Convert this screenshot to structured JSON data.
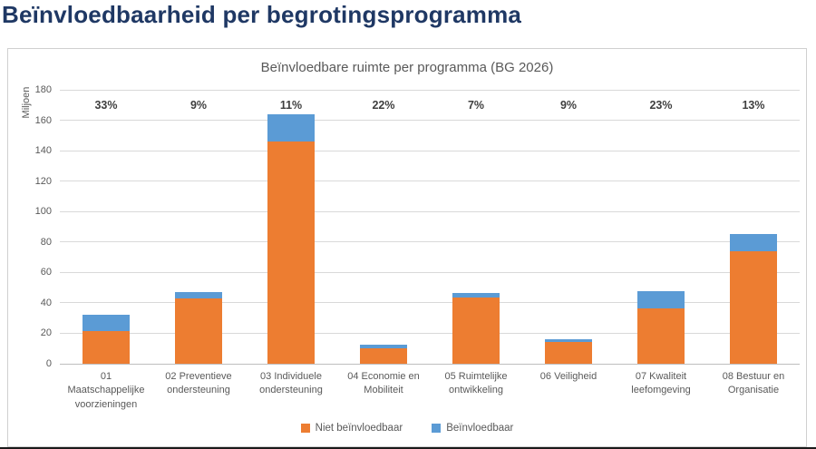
{
  "page": {
    "title": "Beïnvloedbaarheid per begrotingsprogramma"
  },
  "colors": {
    "page_title": "#1f3864",
    "niet_beinvloedbaar": "#ED7D31",
    "beinvloedbaar": "#5B9BD5",
    "axis_text": "#595959",
    "gridline": "#d9d9d9"
  },
  "chart_data": {
    "type": "bar",
    "stacked": true,
    "title": "Beïnvloedbare ruimte per programma (BG 2026)",
    "xlabel": "",
    "ylabel": "Miljoen",
    "ylim": [
      0,
      180
    ],
    "ytick_step": 20,
    "grid": true,
    "legend_position": "bottom",
    "categories": [
      "01 Maatschappelijke voorzieningen",
      "02 Preventieve ondersteuning",
      "03 Individuele ondersteuning",
      "04 Economie en Mobiliteit",
      "05 Ruimtelijke ontwikkeling",
      "06 Veiligheid",
      "07 Kwaliteit leefomgeving",
      "08 Bestuur en Organisatie"
    ],
    "series": [
      {
        "name": "Niet beïnvloedbaar",
        "color": "#ED7D31",
        "values": [
          21.5,
          43,
          146,
          10,
          43.5,
          14.5,
          36.5,
          74
        ]
      },
      {
        "name": "Beïnvloedbaar",
        "color": "#5B9BD5",
        "values": [
          10.5,
          4,
          18,
          2.8,
          3.3,
          1.5,
          11,
          11
        ]
      }
    ],
    "bar_labels": [
      "33%",
      "9%",
      "11%",
      "22%",
      "7%",
      "9%",
      "23%",
      "13%"
    ]
  }
}
